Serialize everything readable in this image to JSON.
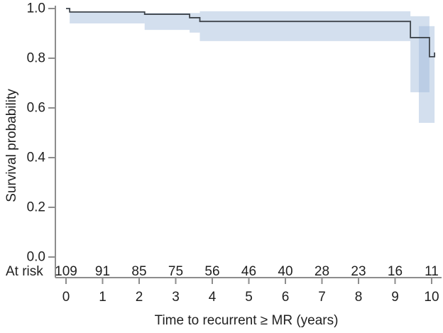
{
  "chart_data": {
    "type": "line",
    "subtype": "kaplan_meier_step_with_confidence_band",
    "title": "",
    "xlabel": "Time to recurrent ≥ MR (years)",
    "ylabel": "Survival probability",
    "xlim": [
      0,
      10.1
    ],
    "ylim": [
      0.0,
      1.0
    ],
    "grid": false,
    "legend": null,
    "x_ticks": [
      0,
      1,
      2,
      3,
      4,
      5,
      6,
      7,
      8,
      9,
      10
    ],
    "x_tick_labels": [
      "0",
      "1",
      "2",
      "3",
      "4",
      "5",
      "6",
      "7",
      "8",
      "9",
      "10"
    ],
    "y_ticks": [
      0.0,
      0.2,
      0.4,
      0.6,
      0.8,
      1.0
    ],
    "y_tick_labels": [
      "0.0",
      "0.2",
      "0.4",
      "0.6",
      "0.8",
      "1.0"
    ],
    "series": [
      {
        "name": "survival-probability",
        "steps": [
          {
            "x": 0.0,
            "y": 1.0
          },
          {
            "x": 0.1,
            "y": 0.986
          },
          {
            "x": 2.15,
            "y": 0.977
          },
          {
            "x": 3.38,
            "y": 0.963
          },
          {
            "x": 3.66,
            "y": 0.948
          },
          {
            "x": 9.42,
            "y": 0.883
          },
          {
            "x": 9.94,
            "y": 0.806
          }
        ],
        "end_x": 10.08,
        "censor_tick_at_end": true
      }
    ],
    "confidence_band": [
      {
        "x0": 0.1,
        "x1": 2.15,
        "hi": 0.988,
        "lo": 0.94
      },
      {
        "x0": 2.15,
        "x1": 3.38,
        "hi": 0.982,
        "lo": 0.914
      },
      {
        "x0": 3.38,
        "x1": 3.66,
        "hi": 0.982,
        "lo": 0.903
      },
      {
        "x0": 3.66,
        "x1": 9.42,
        "hi": 0.989,
        "lo": 0.869
      },
      {
        "x0": 9.42,
        "x1": 9.94,
        "hi": 0.969,
        "lo": 0.663
      },
      {
        "x0": 9.65,
        "x1": 10.08,
        "hi": 0.929,
        "lo": 0.54
      }
    ],
    "at_risk": {
      "label": "At risk",
      "times": [
        0,
        1,
        2,
        3,
        4,
        5,
        6,
        7,
        8,
        9,
        10
      ],
      "counts": [
        109,
        91,
        85,
        75,
        56,
        46,
        40,
        28,
        23,
        16,
        11
      ]
    },
    "colors": {
      "line": "#3f454c",
      "band": "rgba(157,184,217,0.45)",
      "axis": "#8d8d8d",
      "text": "#1f1f1f"
    }
  }
}
